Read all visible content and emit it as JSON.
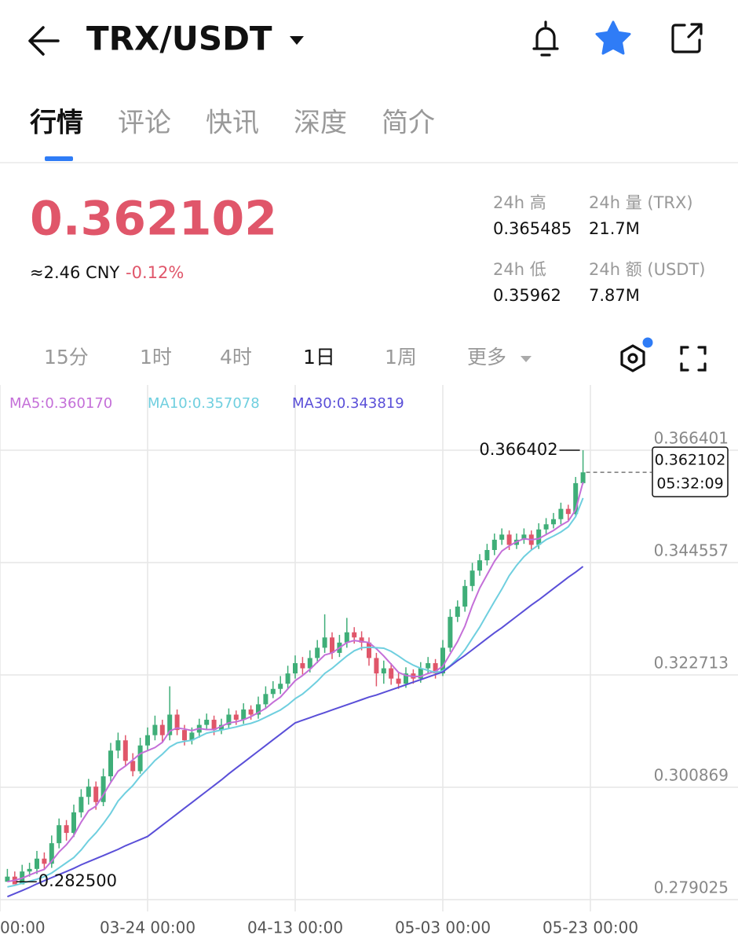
{
  "header": {
    "title": "TRX/USDT"
  },
  "tabs": [
    "行情",
    "评论",
    "快讯",
    "深度",
    "简介"
  ],
  "price": {
    "last": "0.362102",
    "cny": "≈2.46 CNY",
    "change": "-0.12%"
  },
  "stats": [
    {
      "label": "24h 高",
      "value": "0.365485"
    },
    {
      "label": "24h 量 (TRX)",
      "value": "21.7M"
    },
    {
      "label": "24h 低",
      "value": "0.35962"
    },
    {
      "label": "24h 额 (USDT)",
      "value": "7.87M"
    }
  ],
  "intervals": [
    "15分",
    "1时",
    "4时",
    "1日",
    "1周",
    "更多"
  ],
  "chart_data": {
    "type": "candlestick",
    "up_color": "#3fae78",
    "down_color": "#e0566a",
    "candles": [
      [
        0.2825,
        0.285,
        0.2828,
        0.2835
      ],
      [
        0.2835,
        0.2845,
        0.2825,
        0.282
      ],
      [
        0.282,
        0.2858,
        0.283,
        0.2845
      ],
      [
        0.2845,
        0.2862,
        0.2835,
        0.285
      ],
      [
        0.285,
        0.2885,
        0.284,
        0.287
      ],
      [
        0.287,
        0.2882,
        0.2848,
        0.286
      ],
      [
        0.286,
        0.2915,
        0.2852,
        0.29
      ],
      [
        0.29,
        0.2948,
        0.289,
        0.2935
      ],
      [
        0.2935,
        0.2945,
        0.2905,
        0.292
      ],
      [
        0.292,
        0.2975,
        0.2912,
        0.296
      ],
      [
        0.296,
        0.3005,
        0.295,
        0.299
      ],
      [
        0.299,
        0.3025,
        0.2975,
        0.301
      ],
      [
        0.301,
        0.302,
        0.2965,
        0.298
      ],
      [
        0.298,
        0.3045,
        0.2972,
        0.303
      ],
      [
        0.303,
        0.3095,
        0.302,
        0.308
      ],
      [
        0.308,
        0.3115,
        0.3065,
        0.31
      ],
      [
        0.31,
        0.311,
        0.305,
        0.306
      ],
      [
        0.306,
        0.3075,
        0.303,
        0.304
      ],
      [
        0.304,
        0.3105,
        0.3035,
        0.309
      ],
      [
        0.309,
        0.3125,
        0.308,
        0.311
      ],
      [
        0.311,
        0.3148,
        0.31,
        0.313
      ],
      [
        0.313,
        0.314,
        0.3095,
        0.311
      ],
      [
        0.311,
        0.3205,
        0.31,
        0.315
      ],
      [
        0.315,
        0.316,
        0.311,
        0.312
      ],
      [
        0.312,
        0.313,
        0.309,
        0.31
      ],
      [
        0.31,
        0.3125,
        0.3092,
        0.3115
      ],
      [
        0.3115,
        0.3142,
        0.3105,
        0.313
      ],
      [
        0.313,
        0.3152,
        0.312,
        0.314
      ],
      [
        0.314,
        0.3148,
        0.311,
        0.312
      ],
      [
        0.312,
        0.3142,
        0.3112,
        0.313
      ],
      [
        0.313,
        0.3162,
        0.3122,
        0.315
      ],
      [
        0.315,
        0.3158,
        0.313,
        0.314
      ],
      [
        0.314,
        0.3172,
        0.3132,
        0.316
      ],
      [
        0.316,
        0.3168,
        0.314,
        0.315
      ],
      [
        0.315,
        0.3185,
        0.3142,
        0.317
      ],
      [
        0.317,
        0.3205,
        0.3162,
        0.319
      ],
      [
        0.319,
        0.3215,
        0.3182,
        0.32
      ],
      [
        0.32,
        0.3225,
        0.319,
        0.321
      ],
      [
        0.321,
        0.3245,
        0.32,
        0.323
      ],
      [
        0.323,
        0.3265,
        0.322,
        0.325
      ],
      [
        0.325,
        0.3262,
        0.3228,
        0.324
      ],
      [
        0.324,
        0.3275,
        0.3232,
        0.326
      ],
      [
        0.326,
        0.3295,
        0.325,
        0.328
      ],
      [
        0.328,
        0.3345,
        0.327,
        0.33
      ],
      [
        0.33,
        0.331,
        0.3258,
        0.327
      ],
      [
        0.327,
        0.3305,
        0.3262,
        0.329
      ],
      [
        0.329,
        0.3338,
        0.328,
        0.331
      ],
      [
        0.331,
        0.332,
        0.3288,
        0.33
      ],
      [
        0.33,
        0.3312,
        0.3275,
        0.329
      ],
      [
        0.329,
        0.33,
        0.3245,
        0.326
      ],
      [
        0.326,
        0.327,
        0.3205,
        0.323
      ],
      [
        0.323,
        0.3255,
        0.321,
        0.324
      ],
      [
        0.324,
        0.325,
        0.3208,
        0.322
      ],
      [
        0.322,
        0.3232,
        0.32,
        0.321
      ],
      [
        0.321,
        0.3242,
        0.3202,
        0.323
      ],
      [
        0.323,
        0.3238,
        0.321,
        0.322
      ],
      [
        0.322,
        0.3252,
        0.3212,
        0.324
      ],
      [
        0.324,
        0.3262,
        0.323,
        0.325
      ],
      [
        0.325,
        0.3258,
        0.322,
        0.323
      ],
      [
        0.323,
        0.3295,
        0.3225,
        0.328
      ],
      [
        0.328,
        0.3355,
        0.3272,
        0.334
      ],
      [
        0.334,
        0.3372,
        0.333,
        0.336
      ],
      [
        0.336,
        0.3412,
        0.335,
        0.34
      ],
      [
        0.34,
        0.3445,
        0.339,
        0.343
      ],
      [
        0.343,
        0.3462,
        0.342,
        0.345
      ],
      [
        0.345,
        0.3482,
        0.344,
        0.347
      ],
      [
        0.347,
        0.3502,
        0.346,
        0.349
      ],
      [
        0.349,
        0.3512,
        0.348,
        0.35
      ],
      [
        0.35,
        0.3508,
        0.347,
        0.348
      ],
      [
        0.348,
        0.3502,
        0.3472,
        0.349
      ],
      [
        0.349,
        0.3512,
        0.3482,
        0.35
      ],
      [
        0.35,
        0.3508,
        0.347,
        0.348
      ],
      [
        0.348,
        0.3522,
        0.3472,
        0.351
      ],
      [
        0.351,
        0.3532,
        0.35,
        0.352
      ],
      [
        0.352,
        0.3542,
        0.3512,
        0.353
      ],
      [
        0.353,
        0.3562,
        0.352,
        0.355
      ],
      [
        0.355,
        0.3558,
        0.3528,
        0.354
      ],
      [
        0.354,
        0.3612,
        0.3535,
        0.36
      ],
      [
        0.36,
        0.366402,
        0.3598,
        0.3621
      ]
    ],
    "series": [
      {
        "name": "MA5:0.360170",
        "color": "#c46fd8",
        "values": [
          0.2825,
          0.2828,
          0.2832,
          0.2838,
          0.2844,
          0.2849,
          0.2865,
          0.2883,
          0.2897,
          0.2915,
          0.2941,
          0.2963,
          0.2972,
          0.2994,
          0.3018,
          0.304,
          0.305,
          0.3062,
          0.3074,
          0.308,
          0.3086,
          0.3096,
          0.3118,
          0.3124,
          0.3122,
          0.3119,
          0.3123,
          0.3121,
          0.3121,
          0.3127,
          0.3134,
          0.3136,
          0.314,
          0.3146,
          0.3154,
          0.3162,
          0.3174,
          0.3184,
          0.32,
          0.3216,
          0.3226,
          0.3238,
          0.3252,
          0.3266,
          0.327,
          0.328,
          0.329,
          0.3294,
          0.3292,
          0.329,
          0.3278,
          0.3264,
          0.3248,
          0.3232,
          0.3226,
          0.3224,
          0.3224,
          0.323,
          0.3234,
          0.3244,
          0.3268,
          0.3292,
          0.3322,
          0.3362,
          0.3396,
          0.3422,
          0.3448,
          0.3468,
          0.3478,
          0.3486,
          0.3492,
          0.349,
          0.3492,
          0.35,
          0.3508,
          0.3518,
          0.3526,
          0.3548,
          0.3602
        ]
      },
      {
        "name": "MA10:0.357078",
        "color": "#6fcfdf",
        "values": [
          0.2815,
          0.2818,
          0.2822,
          0.2826,
          0.283,
          0.2835,
          0.2842,
          0.2852,
          0.2862,
          0.2872,
          0.2887,
          0.2905,
          0.292,
          0.2938,
          0.2958,
          0.2982,
          0.2998,
          0.3012,
          0.303,
          0.3045,
          0.3061,
          0.3073,
          0.3087,
          0.3095,
          0.3098,
          0.31,
          0.3107,
          0.3114,
          0.3117,
          0.312,
          0.3123,
          0.3126,
          0.313,
          0.3133,
          0.3138,
          0.3145,
          0.3152,
          0.3159,
          0.3169,
          0.3181,
          0.319,
          0.3202,
          0.3215,
          0.323,
          0.324,
          0.3252,
          0.3264,
          0.3274,
          0.328,
          0.3281,
          0.328,
          0.3279,
          0.3273,
          0.3264,
          0.3254,
          0.3246,
          0.324,
          0.3236,
          0.3232,
          0.3235,
          0.3245,
          0.3259,
          0.3276,
          0.3298,
          0.332,
          0.3345,
          0.337,
          0.3394,
          0.342,
          0.344,
          0.3457,
          0.347,
          0.348,
          0.349,
          0.3497,
          0.3505,
          0.3515,
          0.3535,
          0.3571
        ]
      },
      {
        "name": "MA30:0.343819",
        "color": "#5a4fd8",
        "values": [
          0.2796,
          0.2802,
          0.2808,
          0.2814,
          0.2821,
          0.2827,
          0.2833,
          0.2839,
          0.2845,
          0.2851,
          0.2858,
          0.2864,
          0.287,
          0.2876,
          0.2882,
          0.2888,
          0.2895,
          0.2901,
          0.2907,
          0.2913,
          0.2924,
          0.2935,
          0.2946,
          0.2957,
          0.2968,
          0.2979,
          0.299,
          0.3001,
          0.3012,
          0.3023,
          0.3035,
          0.3046,
          0.3057,
          0.3068,
          0.3079,
          0.309,
          0.3101,
          0.3112,
          0.3123,
          0.3134,
          0.3139,
          0.3144,
          0.3149,
          0.3154,
          0.3159,
          0.3164,
          0.3169,
          0.3174,
          0.3179,
          0.3184,
          0.3188,
          0.3193,
          0.3198,
          0.3203,
          0.3208,
          0.3213,
          0.3218,
          0.3223,
          0.3228,
          0.3233,
          0.3244,
          0.3255,
          0.3265,
          0.3276,
          0.3287,
          0.3298,
          0.3309,
          0.3319,
          0.333,
          0.3341,
          0.3352,
          0.3363,
          0.3373,
          0.3384,
          0.3395,
          0.3406,
          0.3417,
          0.3427,
          0.3438
        ]
      }
    ],
    "xlim": [
      -1,
      99
    ],
    "xticks": [
      {
        "value": -1,
        "label": "00:00"
      },
      {
        "value": 19,
        "label": "03-24 00:00"
      },
      {
        "value": 39,
        "label": "04-13 00:00"
      },
      {
        "value": 59,
        "label": "05-03 00:00"
      },
      {
        "value": 79,
        "label": "05-23 00:00"
      }
    ],
    "ylim": [
      0.276733,
      0.37908
    ],
    "yticks": [
      0.366401,
      0.344557,
      0.322713,
      0.300869,
      0.279025
    ],
    "grid": true,
    "high_marker": 0.366402,
    "low_marker": {
      "value": 0.2825,
      "label": "0.282500"
    },
    "last_price": 0.362102,
    "last_time": "05:32:09"
  }
}
